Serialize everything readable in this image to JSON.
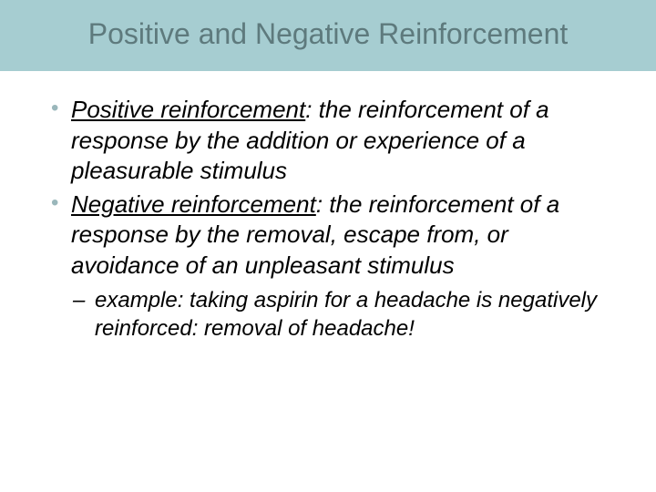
{
  "title": "Positive and Negative Reinforcement",
  "title_band_color": "#a6cdd1",
  "title_text_color": "#5e7a7d",
  "body_text_color": "#000000",
  "bullet_color": "#9ab7bb",
  "title_fontsize": 32,
  "bullet_fontsize": 26,
  "sub_fontsize": 24,
  "bullets": [
    {
      "term": "Positive reinforcement",
      "definition": ": the reinforcement of a response by the addition or experience of a pleasurable stimulus"
    },
    {
      "term": "Negative reinforcement",
      "definition": ": the reinforcement of a response by the removal, escape from, or avoidance of an unpleasant stimulus"
    }
  ],
  "sub_bullets": [
    {
      "lead": "example:",
      "text": " taking aspirin for a headache is negatively reinforced: removal of headache!"
    }
  ]
}
